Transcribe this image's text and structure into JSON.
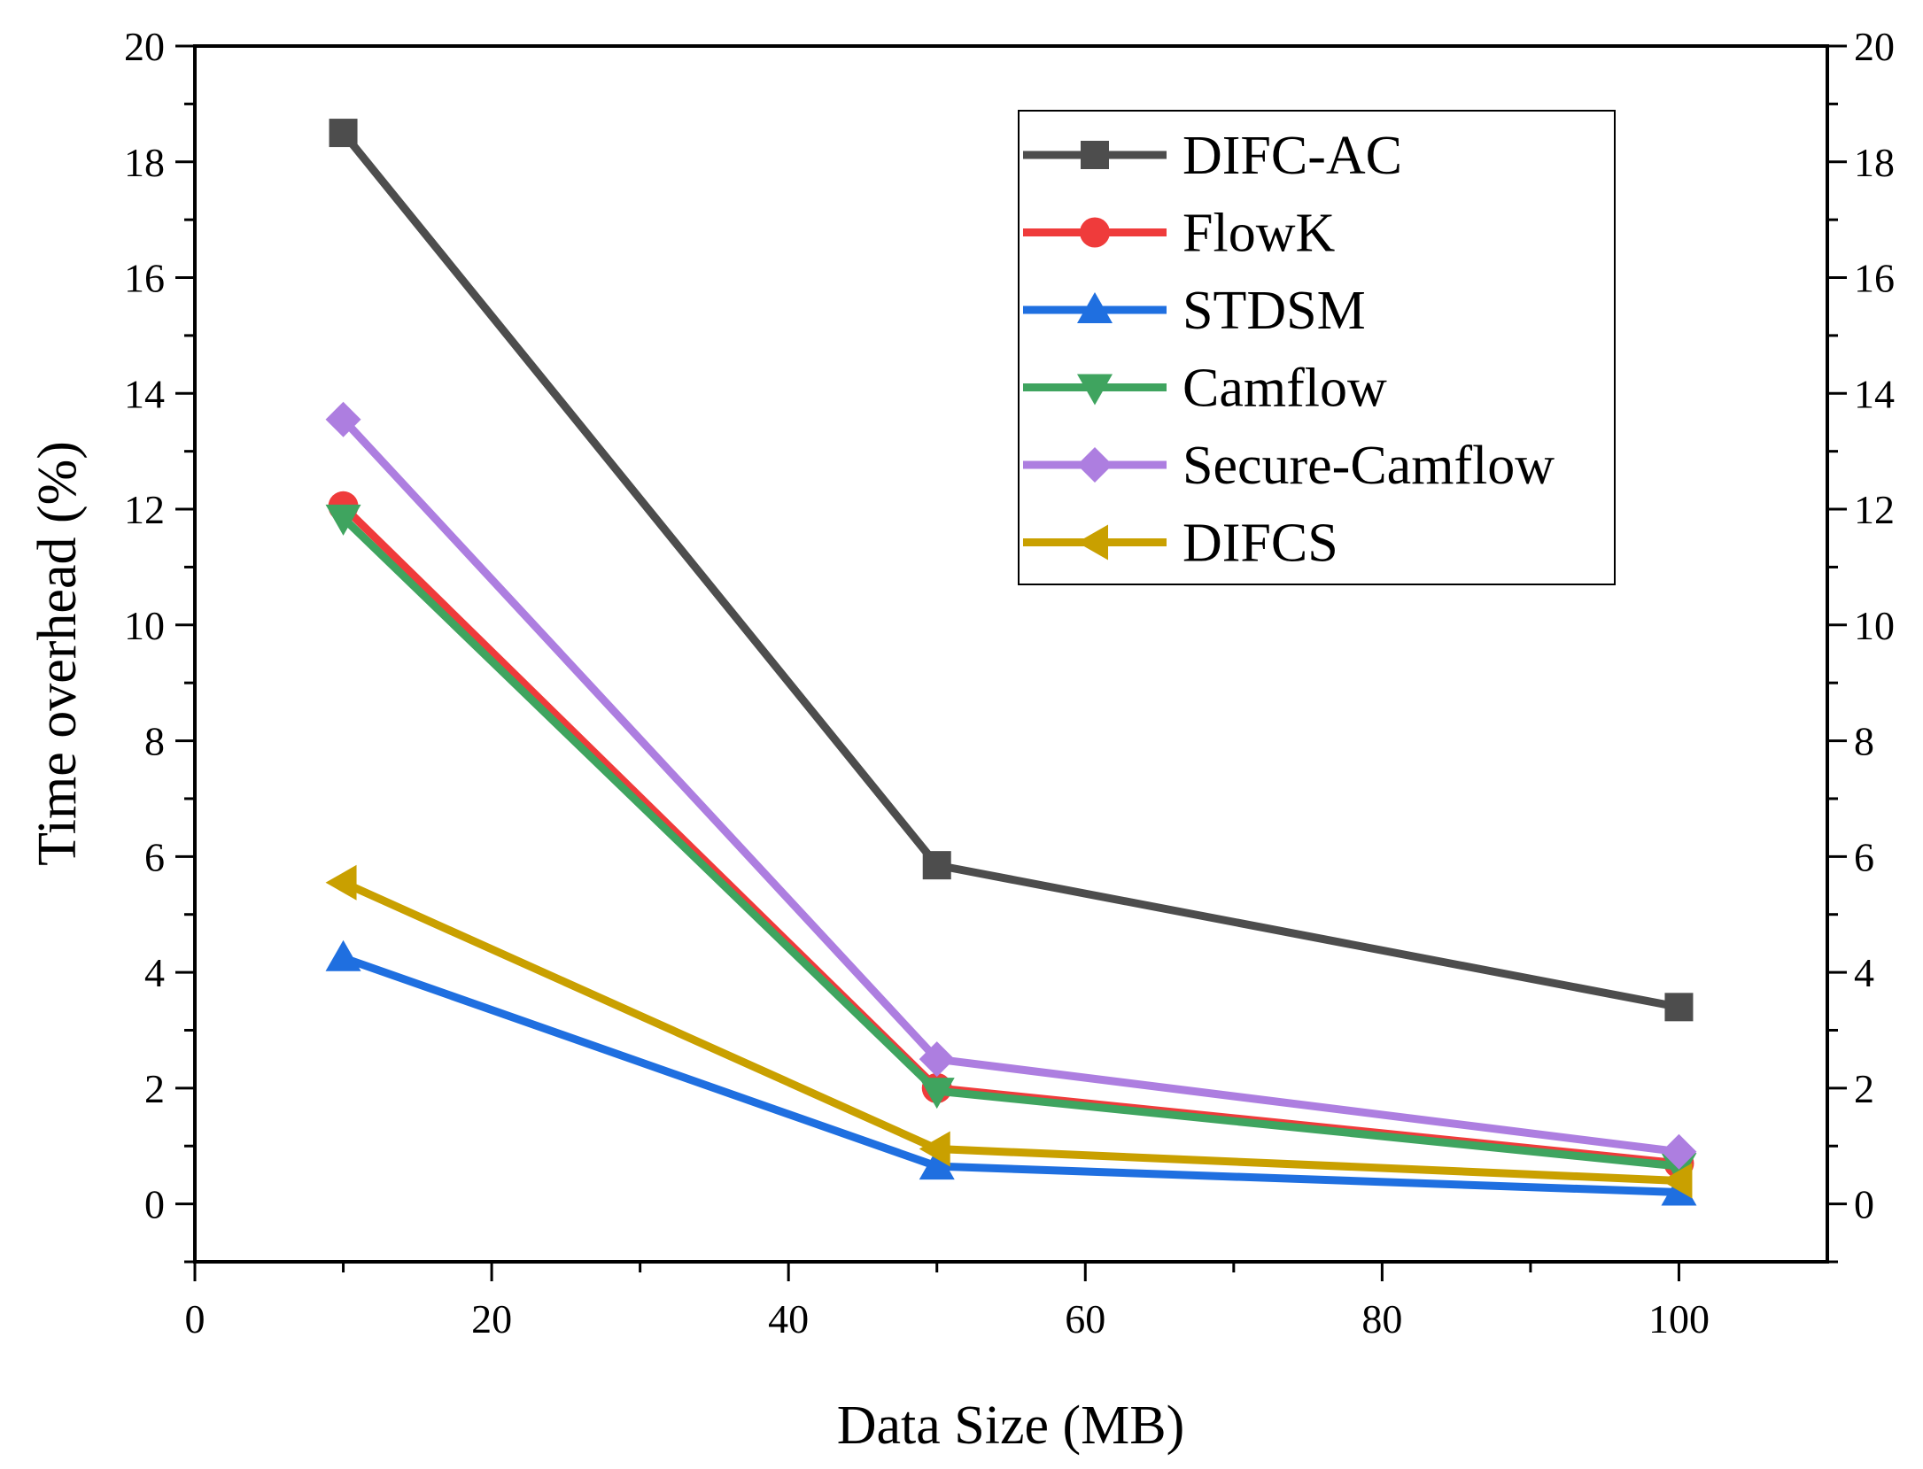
{
  "chart_data": {
    "type": "line",
    "title": "",
    "xlabel": "Data Size (MB)",
    "ylabel": "Time overhead (%)",
    "xlim": [
      0,
      110
    ],
    "ylim": [
      -1,
      20
    ],
    "x_ticks": [
      0,
      20,
      40,
      60,
      80,
      100
    ],
    "y_ticks": [
      0,
      2,
      4,
      6,
      8,
      10,
      12,
      14,
      16,
      18,
      20
    ],
    "right_axis_mirrors_left": true,
    "grid": false,
    "legend_position": "top-right",
    "x": [
      10,
      50,
      100
    ],
    "series": [
      {
        "name": "DIFC-AC",
        "color": "#4d4d4d",
        "marker": "square",
        "values": [
          18.5,
          5.85,
          3.4
        ]
      },
      {
        "name": "FlowK",
        "color": "#ef3b3b",
        "marker": "circle",
        "values": [
          12.05,
          2.0,
          0.7
        ]
      },
      {
        "name": "STDSM",
        "color": "#1f6fe0",
        "marker": "triangle-up",
        "values": [
          4.25,
          0.65,
          0.2
        ]
      },
      {
        "name": "Camflow",
        "color": "#3fa45f",
        "marker": "triangle-down",
        "values": [
          11.85,
          1.95,
          0.65
        ]
      },
      {
        "name": "Secure-Camflow",
        "color": "#ad7ee0",
        "marker": "diamond",
        "values": [
          13.55,
          2.5,
          0.9
        ]
      },
      {
        "name": "DIFCS",
        "color": "#c9a000",
        "marker": "triangle-left",
        "values": [
          5.55,
          0.95,
          0.4
        ]
      }
    ]
  }
}
